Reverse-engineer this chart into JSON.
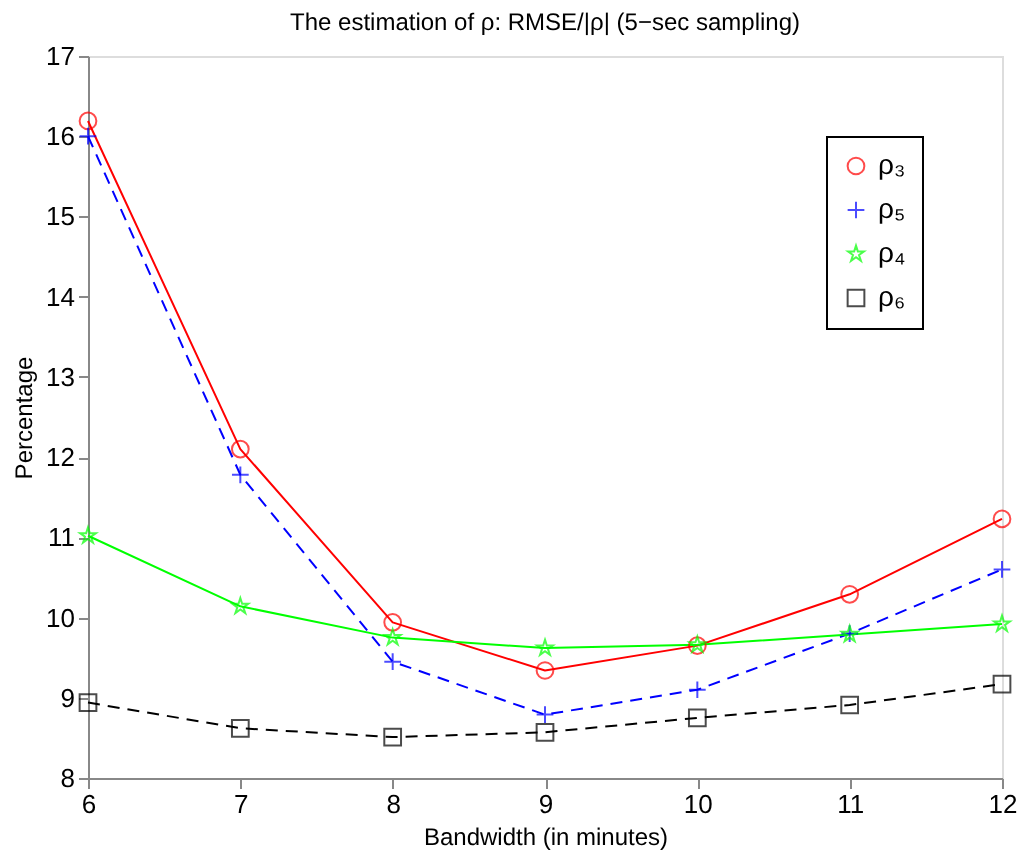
{
  "chart_data": {
    "type": "line",
    "title": "The estimation of ρ: RMSE/|ρ| (5−sec sampling)",
    "xlabel": "Bandwidth (in minutes)",
    "ylabel": "Percentage",
    "x": [
      6,
      7,
      8,
      9,
      10,
      11,
      12
    ],
    "xlim": [
      6,
      12
    ],
    "xticks": [
      6,
      7,
      8,
      9,
      10,
      11,
      12
    ],
    "ylim": [
      8,
      17
    ],
    "yticks": [
      8,
      9,
      10,
      11,
      12,
      13,
      14,
      15,
      16,
      17
    ],
    "grid": false,
    "legend": "top right",
    "series": [
      {
        "name": "ρ₃",
        "color": "#ff0000",
        "marker": "circle",
        "line_style": "solid",
        "values": [
          16.19,
          12.1,
          9.94,
          9.34,
          9.65,
          10.29,
          11.23
        ]
      },
      {
        "name": "ρ₅",
        "color": "#0000ff",
        "marker": "cross",
        "line_style": "dashed",
        "values": [
          16.0,
          11.78,
          9.45,
          8.79,
          9.1,
          9.8,
          10.6
        ]
      },
      {
        "name": "ρ₄",
        "color": "#00ff00",
        "marker": "star",
        "line_style": "solid",
        "values": [
          11.02,
          10.14,
          9.75,
          9.62,
          9.66,
          9.79,
          9.92
        ]
      },
      {
        "name": "ρ₆",
        "color": "#000000",
        "marker": "square",
        "line_style": "dashed",
        "values": [
          8.94,
          8.62,
          8.51,
          8.57,
          8.75,
          8.91,
          9.17
        ]
      }
    ]
  }
}
